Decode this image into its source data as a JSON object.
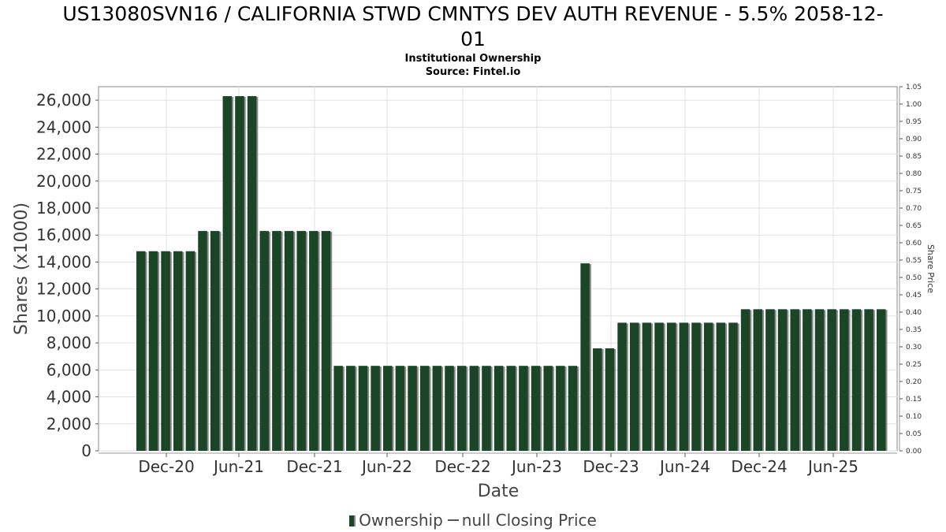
{
  "title": "US13080SVN16 / CALIFORNIA STWD CMNTYS DEV AUTH REVENUE - 5.5% 2058-12-01",
  "title_line1": "US13080SVN16 / CALIFORNIA STWD CMNTYS DEV AUTH REVENUE - 5.5% 2058-12-",
  "title_line2": "01",
  "subtitle1": "Institutional Ownership",
  "subtitle2": "Source: Fintel.io",
  "legend": {
    "ownership_label": "Ownership",
    "price_label": "null Closing Price"
  },
  "colors": {
    "bar": "#1b4527",
    "bar_shadow": "#8a8a8a",
    "grid": "#e0e0e0",
    "plot_border": "#888888"
  },
  "chart_data": {
    "type": "bar",
    "title": "US13080SVN16 / CALIFORNIA STWD CMNTYS DEV AUTH REVENUE - 5.5% 2058-12-01",
    "subtitle": "Institutional Ownership",
    "xlabel": "Date",
    "ylabel": "Shares (x1000)",
    "y2label": "Share Price",
    "ylim": [
      0,
      27000
    ],
    "y2lim": [
      0,
      1.05
    ],
    "y_ticks": [
      "0",
      "2,000",
      "4,000",
      "6,000",
      "8,000",
      "10,000",
      "12,000",
      "14,000",
      "16,000",
      "18,000",
      "20,000",
      "22,000",
      "24,000",
      "26,000"
    ],
    "y2_ticks": [
      "0.00",
      "0.05",
      "0.10",
      "0.15",
      "0.20",
      "0.25",
      "0.30",
      "0.35",
      "0.40",
      "0.45",
      "0.50",
      "0.55",
      "0.60",
      "0.65",
      "0.70",
      "0.75",
      "0.80",
      "0.85",
      "0.90",
      "0.95",
      "1.00",
      "1.05"
    ],
    "x_ticks": [
      "Dec-20",
      "Jun-21",
      "Dec-21",
      "Jun-22",
      "Dec-22",
      "Jun-23",
      "Dec-23",
      "Jun-24",
      "Dec-24",
      "Jun-25"
    ],
    "grid": true,
    "legend_position": "bottom-center",
    "series": [
      {
        "name": "Ownership",
        "values": [
          14800,
          14800,
          14800,
          14800,
          14800,
          16300,
          16300,
          26300,
          26300,
          26300,
          16300,
          16300,
          16300,
          16300,
          16300,
          16300,
          6300,
          6300,
          6300,
          6300,
          6300,
          6300,
          6300,
          6300,
          6300,
          6300,
          6300,
          6300,
          6300,
          6300,
          6300,
          6300,
          6300,
          6300,
          6300,
          6300,
          13900,
          7600,
          7600,
          9500,
          9500,
          9500,
          9500,
          9500,
          9500,
          9500,
          9500,
          9500,
          9500,
          10500,
          10500,
          10500,
          10500,
          10500,
          10500,
          10500,
          10500,
          10500,
          10500,
          10500,
          10500
        ]
      }
    ]
  }
}
